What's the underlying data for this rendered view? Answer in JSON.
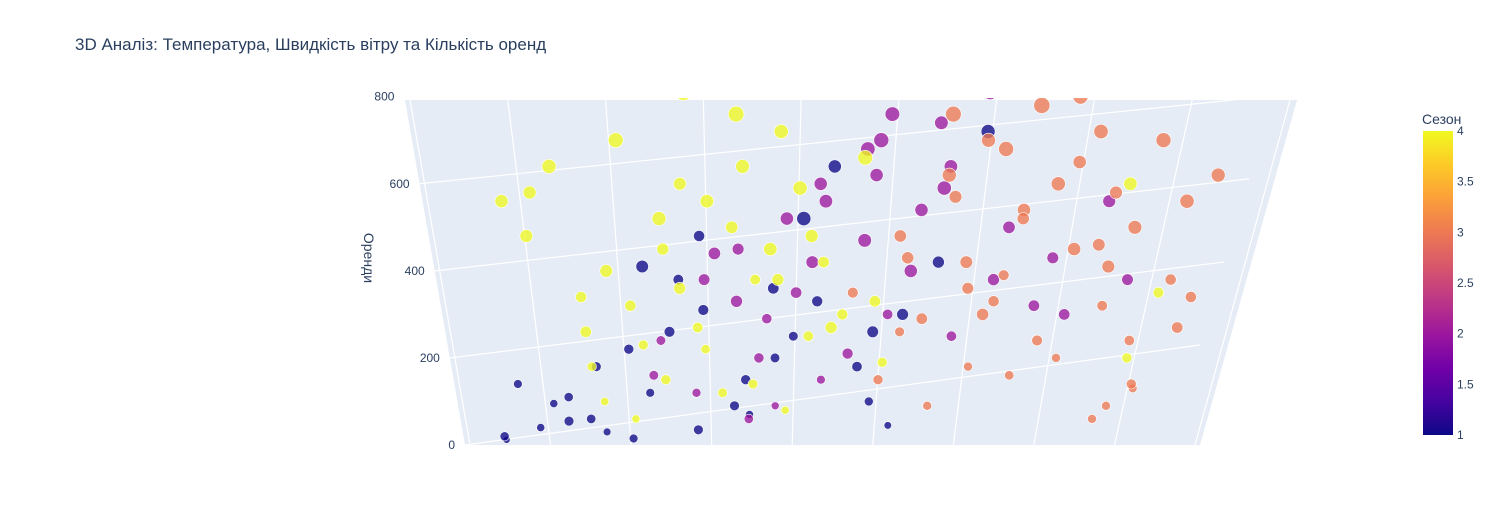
{
  "chart_data": {
    "type": "scatter",
    "title": "3D Аналіз: Температура, Швидкість вітру та Кількість оренд",
    "zlabel": "Оренди",
    "zlim": [
      0,
      820
    ],
    "z_ticks": [
      0,
      200,
      400,
      600,
      800
    ],
    "z_tick_labels": [
      "0",
      "200",
      "400",
      "600",
      "800"
    ],
    "colorbar": {
      "title": "Сезон",
      "range": [
        1,
        4
      ],
      "ticks": [
        1,
        1.5,
        2,
        2.5,
        3,
        3.5,
        4
      ],
      "tick_labels": [
        "1",
        "1.5",
        "2",
        "2.5",
        "3",
        "3.5",
        "4"
      ],
      "colorscale": [
        "#0d0887",
        "#46039f",
        "#7201a8",
        "#9c179e",
        "#bd3786",
        "#d8576b",
        "#ed7953",
        "#fb9f3a",
        "#fdca26",
        "#f0f921"
      ]
    },
    "grid": true,
    "series": [
      {
        "season": 1,
        "color": "#0d0887",
        "points": [
          [
            0.08,
            0.05,
            12
          ],
          [
            0.12,
            0.3,
            40
          ],
          [
            0.15,
            0.12,
            95
          ],
          [
            0.1,
            0.2,
            140
          ],
          [
            0.2,
            0.45,
            180
          ],
          [
            0.18,
            0.6,
            60
          ],
          [
            0.25,
            0.35,
            220
          ],
          [
            0.22,
            0.15,
            30
          ],
          [
            0.3,
            0.5,
            260
          ],
          [
            0.28,
            0.25,
            120
          ],
          [
            0.35,
            0.4,
            310
          ],
          [
            0.05,
            0.7,
            20
          ],
          [
            0.14,
            0.8,
            55
          ],
          [
            0.33,
            0.1,
            380
          ],
          [
            0.4,
            0.55,
            150
          ],
          [
            0.38,
            0.65,
            90
          ],
          [
            0.45,
            0.3,
            200
          ],
          [
            0.26,
            0.72,
            410
          ],
          [
            0.42,
            0.2,
            70
          ],
          [
            0.32,
            0.85,
            35
          ],
          [
            0.5,
            0.4,
            330
          ],
          [
            0.48,
            0.15,
            250
          ],
          [
            0.36,
            0.05,
            480
          ],
          [
            0.55,
            0.6,
            180
          ],
          [
            0.58,
            0.35,
            100
          ],
          [
            0.6,
            0.75,
            300
          ],
          [
            0.46,
            0.9,
            520
          ],
          [
            0.52,
            0.25,
            640
          ],
          [
            0.65,
            0.5,
            420
          ],
          [
            0.7,
            0.3,
            720
          ],
          [
            0.62,
            0.1,
            45
          ],
          [
            0.56,
            0.8,
            260
          ],
          [
            0.44,
            0.45,
            360
          ],
          [
            0.24,
            0.55,
            15
          ],
          [
            0.16,
            0.4,
            110
          ]
        ]
      },
      {
        "season": 2,
        "color": "#9c179e",
        "points": [
          [
            0.3,
            0.2,
            240
          ],
          [
            0.35,
            0.45,
            380
          ],
          [
            0.4,
            0.3,
            450
          ],
          [
            0.45,
            0.6,
            520
          ],
          [
            0.5,
            0.35,
            600
          ],
          [
            0.55,
            0.5,
            680
          ],
          [
            0.6,
            0.25,
            300
          ],
          [
            0.48,
            0.7,
            420
          ],
          [
            0.52,
            0.15,
            150
          ],
          [
            0.58,
            0.4,
            760
          ],
          [
            0.62,
            0.55,
            540
          ],
          [
            0.66,
            0.3,
            640
          ],
          [
            0.42,
            0.5,
            200
          ],
          [
            0.38,
            0.75,
            330
          ],
          [
            0.46,
            0.1,
            90
          ],
          [
            0.54,
            0.85,
            470
          ],
          [
            0.64,
            0.7,
            590
          ],
          [
            0.68,
            0.45,
            250
          ],
          [
            0.72,
            0.6,
            380
          ],
          [
            0.7,
            0.2,
            810
          ],
          [
            0.34,
            0.35,
            120
          ],
          [
            0.44,
            0.25,
            290
          ],
          [
            0.56,
            0.65,
            700
          ],
          [
            0.6,
            0.9,
            400
          ],
          [
            0.74,
            0.35,
            500
          ],
          [
            0.78,
            0.55,
            320
          ],
          [
            0.5,
            0.55,
            560
          ],
          [
            0.4,
            0.65,
            60
          ],
          [
            0.28,
            0.4,
            160
          ],
          [
            0.8,
            0.4,
            430
          ],
          [
            0.65,
            0.1,
            740
          ],
          [
            0.57,
            0.3,
            620
          ],
          [
            0.47,
            0.45,
            350
          ],
          [
            0.53,
            0.75,
            210
          ],
          [
            0.36,
            0.55,
            440
          ],
          [
            0.86,
            0.35,
            560
          ],
          [
            0.82,
            0.6,
            300
          ],
          [
            0.9,
            0.45,
            380
          ]
        ]
      },
      {
        "season": 3,
        "color": "#ed7953",
        "points": [
          [
            0.55,
            0.3,
            350
          ],
          [
            0.6,
            0.45,
            480
          ],
          [
            0.65,
            0.55,
            620
          ],
          [
            0.7,
            0.35,
            700
          ],
          [
            0.75,
            0.5,
            540
          ],
          [
            0.8,
            0.4,
            800
          ],
          [
            0.62,
            0.2,
            260
          ],
          [
            0.68,
            0.65,
            420
          ],
          [
            0.72,
            0.15,
            180
          ],
          [
            0.78,
            0.7,
            600
          ],
          [
            0.85,
            0.55,
            460
          ],
          [
            0.88,
            0.3,
            320
          ],
          [
            0.9,
            0.65,
            700
          ],
          [
            0.92,
            0.45,
            240
          ],
          [
            0.94,
            0.8,
            560
          ],
          [
            0.96,
            0.35,
            380
          ],
          [
            0.74,
            0.85,
            780
          ],
          [
            0.66,
            0.4,
            90
          ],
          [
            0.58,
            0.6,
            150
          ],
          [
            0.82,
            0.2,
            650
          ],
          [
            0.86,
            0.75,
            410
          ],
          [
            0.76,
            0.25,
            520
          ],
          [
            0.7,
            0.9,
            300
          ],
          [
            0.64,
            0.75,
            760
          ],
          [
            0.84,
            0.1,
            200
          ],
          [
            0.98,
            0.55,
            620
          ],
          [
            0.95,
            0.2,
            130
          ],
          [
            0.88,
            0.85,
            500
          ],
          [
            0.73,
            0.45,
            330
          ],
          [
            0.79,
            0.6,
            240
          ],
          [
            0.67,
            0.3,
            570
          ],
          [
            0.61,
            0.5,
            430
          ],
          [
            0.91,
            0.4,
            90
          ],
          [
            0.97,
            0.7,
            270
          ],
          [
            0.93,
            0.6,
            140
          ],
          [
            0.83,
            0.45,
            720
          ],
          [
            0.77,
            0.35,
            160
          ],
          [
            0.69,
            0.55,
            360
          ],
          [
            0.81,
            0.8,
            450
          ],
          [
            0.87,
            0.25,
            580
          ],
          [
            0.99,
            0.4,
            340
          ],
          [
            0.89,
            0.5,
            60
          ],
          [
            0.71,
            0.7,
            680
          ],
          [
            0.63,
            0.65,
            290
          ],
          [
            0.75,
            0.15,
            390
          ]
        ]
      },
      {
        "season": 4,
        "color": "#f0f921",
        "points": [
          [
            0.2,
            0.3,
            180
          ],
          [
            0.25,
            0.5,
            320
          ],
          [
            0.3,
            0.4,
            450
          ],
          [
            0.35,
            0.6,
            560
          ],
          [
            0.4,
            0.45,
            640
          ],
          [
            0.45,
            0.35,
            720
          ],
          [
            0.18,
            0.7,
            260
          ],
          [
            0.22,
            0.15,
            100
          ],
          [
            0.28,
            0.85,
            520
          ],
          [
            0.33,
            0.25,
            600
          ],
          [
            0.38,
            0.8,
            760
          ],
          [
            0.43,
            0.1,
            380
          ],
          [
            0.48,
            0.65,
            480
          ],
          [
            0.53,
            0.5,
            300
          ],
          [
            0.16,
            0.55,
            640
          ],
          [
            0.14,
            0.35,
            580
          ],
          [
            0.24,
            0.65,
            700
          ],
          [
            0.32,
            0.75,
            810
          ],
          [
            0.36,
            0.2,
            220
          ],
          [
            0.41,
            0.55,
            140
          ],
          [
            0.46,
            0.75,
            590
          ],
          [
            0.51,
            0.3,
            420
          ],
          [
            0.26,
            0.2,
            60
          ],
          [
            0.12,
            0.6,
            480
          ],
          [
            0.1,
            0.45,
            560
          ],
          [
            0.19,
            0.4,
            340
          ],
          [
            0.29,
            0.55,
            150
          ],
          [
            0.34,
            0.45,
            270
          ],
          [
            0.39,
            0.35,
            500
          ],
          [
            0.44,
            0.6,
            380
          ],
          [
            0.49,
            0.4,
            250
          ],
          [
            0.54,
            0.7,
            660
          ],
          [
            0.59,
            0.45,
            190
          ],
          [
            0.21,
            0.8,
            400
          ],
          [
            0.27,
            0.35,
            230
          ],
          [
            0.31,
            0.65,
            360
          ],
          [
            0.37,
            0.5,
            120
          ],
          [
            0.42,
            0.85,
            450
          ],
          [
            0.47,
            0.2,
            80
          ],
          [
            0.95,
            0.3,
            350
          ],
          [
            0.92,
            0.5,
            200
          ],
          [
            0.88,
            0.4,
            600
          ],
          [
            0.57,
            0.55,
            330
          ],
          [
            0.5,
            0.9,
            270
          ]
        ]
      }
    ]
  }
}
